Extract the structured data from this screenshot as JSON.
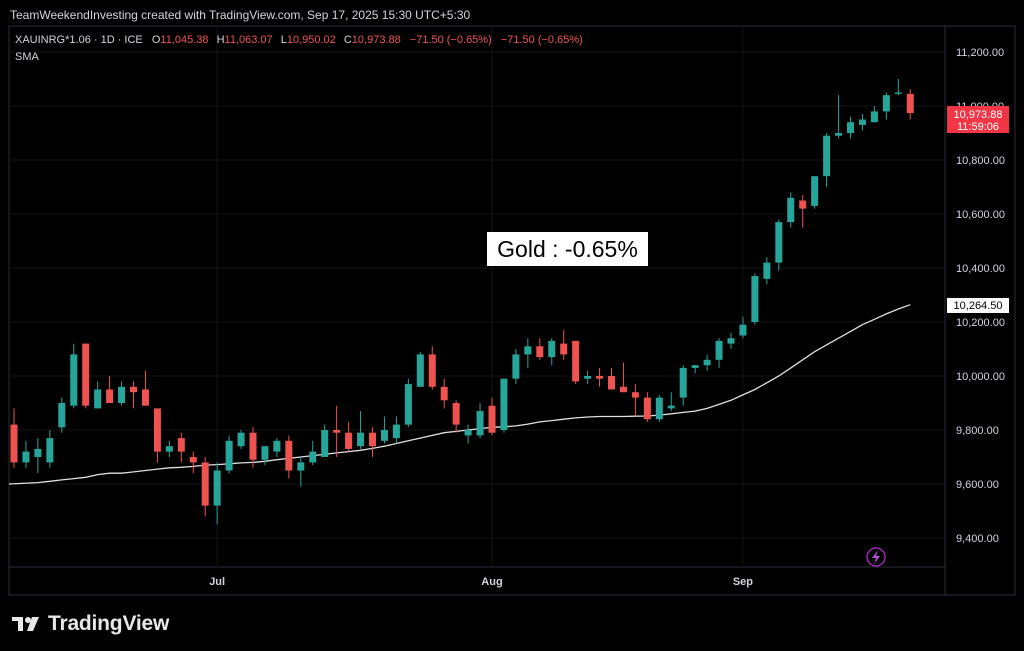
{
  "header": {
    "credit": "TeamWeekendInvesting created with TradingView.com, Sep 17, 2025 15:30 UTC+5:30",
    "symbol": "XAUINRG*1.06 · 1D · ICE",
    "o_label": "O",
    "o_value": "11,045.38",
    "h_label": "H",
    "h_value": "11,063.07",
    "l_label": "L",
    "l_value": "10,950.02",
    "c_label": "C",
    "c_value": "10,973.88",
    "change": "−71.50 (−0.65%)",
    "change2": "−71.50 (−0.65%)",
    "indicator": "SMA"
  },
  "annotation": "Gold : -0.65%",
  "price_badge": {
    "price": "10,973.88",
    "countdown": "11:59:06"
  },
  "sma_badge": "10,264.50",
  "brand": {
    "name": "TradingView",
    "icon": "tradingview-logo-icon"
  },
  "corner_icon": "lightning-icon",
  "colors": {
    "up": "#26a69a",
    "down": "#ef5350",
    "sma": "#e0e0e0",
    "background": "#000000",
    "badge_sma": "#ffffff"
  },
  "chart_data": {
    "type": "candlestick",
    "ylim": [
      9300,
      11300
    ],
    "y_ticks": [
      "9,400.00",
      "9,600.00",
      "9,800.00",
      "10,000.00",
      "10,200.00",
      "10,400.00",
      "10,600.00",
      "10,800.00",
      "11,000.00",
      "11,200.00"
    ],
    "y_tick_values": [
      9400,
      9600,
      9800,
      10000,
      10200,
      10400,
      10600,
      10800,
      11000,
      11200
    ],
    "x_labels": [
      {
        "label": "Jul",
        "index": 17
      },
      {
        "label": "Aug",
        "index": 40
      },
      {
        "label": "Sep",
        "index": 61
      }
    ],
    "candles": [
      {
        "o": 9820,
        "h": 9880,
        "l": 9660,
        "c": 9680
      },
      {
        "o": 9680,
        "h": 9760,
        "l": 9660,
        "c": 9720
      },
      {
        "o": 9700,
        "h": 9770,
        "l": 9640,
        "c": 9730
      },
      {
        "o": 9680,
        "h": 9800,
        "l": 9660,
        "c": 9770
      },
      {
        "o": 9810,
        "h": 9920,
        "l": 9790,
        "c": 9900
      },
      {
        "o": 9890,
        "h": 10120,
        "l": 9880,
        "c": 10080
      },
      {
        "o": 10120,
        "h": 10120,
        "l": 9880,
        "c": 9890
      },
      {
        "o": 9880,
        "h": 9980,
        "l": 9880,
        "c": 9950
      },
      {
        "o": 9950,
        "h": 10000,
        "l": 9900,
        "c": 9900
      },
      {
        "o": 9900,
        "h": 9980,
        "l": 9890,
        "c": 9960
      },
      {
        "o": 9960,
        "h": 9980,
        "l": 9880,
        "c": 9940
      },
      {
        "o": 9950,
        "h": 10020,
        "l": 9900,
        "c": 9890
      },
      {
        "o": 9880,
        "h": 9880,
        "l": 9680,
        "c": 9720
      },
      {
        "o": 9720,
        "h": 9760,
        "l": 9700,
        "c": 9740
      },
      {
        "o": 9770,
        "h": 9790,
        "l": 9680,
        "c": 9720
      },
      {
        "o": 9700,
        "h": 9720,
        "l": 9640,
        "c": 9680
      },
      {
        "o": 9680,
        "h": 9700,
        "l": 9480,
        "c": 9520
      },
      {
        "o": 9520,
        "h": 9680,
        "l": 9450,
        "c": 9650
      },
      {
        "o": 9650,
        "h": 9780,
        "l": 9640,
        "c": 9760
      },
      {
        "o": 9740,
        "h": 9800,
        "l": 9730,
        "c": 9790
      },
      {
        "o": 9790,
        "h": 9810,
        "l": 9660,
        "c": 9690
      },
      {
        "o": 9690,
        "h": 9740,
        "l": 9670,
        "c": 9740
      },
      {
        "o": 9720,
        "h": 9770,
        "l": 9700,
        "c": 9760
      },
      {
        "o": 9760,
        "h": 9780,
        "l": 9620,
        "c": 9650
      },
      {
        "o": 9650,
        "h": 9700,
        "l": 9590,
        "c": 9680
      },
      {
        "o": 9680,
        "h": 9760,
        "l": 9670,
        "c": 9720
      },
      {
        "o": 9700,
        "h": 9820,
        "l": 9700,
        "c": 9800
      },
      {
        "o": 9800,
        "h": 9890,
        "l": 9700,
        "c": 9790
      },
      {
        "o": 9790,
        "h": 9830,
        "l": 9720,
        "c": 9730
      },
      {
        "o": 9740,
        "h": 9870,
        "l": 9730,
        "c": 9790
      },
      {
        "o": 9790,
        "h": 9810,
        "l": 9700,
        "c": 9740
      },
      {
        "o": 9760,
        "h": 9850,
        "l": 9750,
        "c": 9800
      },
      {
        "o": 9770,
        "h": 9850,
        "l": 9750,
        "c": 9820
      },
      {
        "o": 9820,
        "h": 9990,
        "l": 9810,
        "c": 9970
      },
      {
        "o": 9960,
        "h": 10090,
        "l": 9960,
        "c": 10080
      },
      {
        "o": 10080,
        "h": 10110,
        "l": 9950,
        "c": 9960
      },
      {
        "o": 9960,
        "h": 9990,
        "l": 9880,
        "c": 9910
      },
      {
        "o": 9900,
        "h": 9910,
        "l": 9790,
        "c": 9820
      },
      {
        "o": 9780,
        "h": 9820,
        "l": 9750,
        "c": 9800
      },
      {
        "o": 9780,
        "h": 9900,
        "l": 9770,
        "c": 9870
      },
      {
        "o": 9890,
        "h": 9920,
        "l": 9780,
        "c": 9790
      },
      {
        "o": 9800,
        "h": 9990,
        "l": 9790,
        "c": 9990
      },
      {
        "o": 9990,
        "h": 10100,
        "l": 9970,
        "c": 10080
      },
      {
        "o": 10080,
        "h": 10140,
        "l": 10030,
        "c": 10110
      },
      {
        "o": 10110,
        "h": 10140,
        "l": 10060,
        "c": 10070
      },
      {
        "o": 10070,
        "h": 10140,
        "l": 10040,
        "c": 10130
      },
      {
        "o": 10120,
        "h": 10170,
        "l": 10060,
        "c": 10080
      },
      {
        "o": 10130,
        "h": 10130,
        "l": 9970,
        "c": 9980
      },
      {
        "o": 9990,
        "h": 10020,
        "l": 9970,
        "c": 10000
      },
      {
        "o": 10000,
        "h": 10030,
        "l": 9960,
        "c": 9990
      },
      {
        "o": 10000,
        "h": 10030,
        "l": 9950,
        "c": 9950
      },
      {
        "o": 9960,
        "h": 10050,
        "l": 9940,
        "c": 9940
      },
      {
        "o": 9940,
        "h": 9970,
        "l": 9850,
        "c": 9920
      },
      {
        "o": 9920,
        "h": 9940,
        "l": 9830,
        "c": 9840
      },
      {
        "o": 9840,
        "h": 9930,
        "l": 9830,
        "c": 9920
      },
      {
        "o": 9880,
        "h": 9940,
        "l": 9870,
        "c": 9890
      },
      {
        "o": 9920,
        "h": 10040,
        "l": 9890,
        "c": 10030
      },
      {
        "o": 10030,
        "h": 10040,
        "l": 10010,
        "c": 10040
      },
      {
        "o": 10040,
        "h": 10080,
        "l": 10020,
        "c": 10060
      },
      {
        "o": 10060,
        "h": 10140,
        "l": 10030,
        "c": 10130
      },
      {
        "o": 10120,
        "h": 10160,
        "l": 10100,
        "c": 10140
      },
      {
        "o": 10150,
        "h": 10220,
        "l": 10140,
        "c": 10190
      },
      {
        "o": 10200,
        "h": 10380,
        "l": 10190,
        "c": 10370
      },
      {
        "o": 10360,
        "h": 10440,
        "l": 10340,
        "c": 10420
      },
      {
        "o": 10420,
        "h": 10580,
        "l": 10390,
        "c": 10570
      },
      {
        "o": 10570,
        "h": 10680,
        "l": 10550,
        "c": 10660
      },
      {
        "o": 10650,
        "h": 10670,
        "l": 10550,
        "c": 10620
      },
      {
        "o": 10630,
        "h": 10740,
        "l": 10620,
        "c": 10740
      },
      {
        "o": 10740,
        "h": 10900,
        "l": 10700,
        "c": 10890
      },
      {
        "o": 10890,
        "h": 11040,
        "l": 10880,
        "c": 10900
      },
      {
        "o": 10900,
        "h": 10960,
        "l": 10880,
        "c": 10940
      },
      {
        "o": 10930,
        "h": 10970,
        "l": 10910,
        "c": 10950
      },
      {
        "o": 10940,
        "h": 11000,
        "l": 10940,
        "c": 10980
      },
      {
        "o": 10980,
        "h": 11050,
        "l": 10950,
        "c": 11040
      },
      {
        "o": 11045,
        "h": 11100,
        "l": 11040,
        "c": 11050
      },
      {
        "o": 11045,
        "h": 11063,
        "l": 10950,
        "c": 10974
      }
    ],
    "sma": [
      9600,
      9605,
      9610,
      9615,
      9620,
      9625,
      9635,
      9640,
      9640,
      9645,
      9650,
      9655,
      9660,
      9662,
      9665,
      9670,
      9672,
      9675,
      9678,
      9680,
      9684,
      9690,
      9695,
      9700,
      9705,
      9710,
      9715,
      9720,
      9725,
      9732,
      9740,
      9750,
      9760,
      9770,
      9780,
      9790,
      9795,
      9800,
      9805,
      9810,
      9812,
      9815,
      9822,
      9830,
      9835,
      9840,
      9845,
      9848,
      9850,
      9850,
      9850,
      9851,
      9852,
      9855,
      9860,
      9865,
      9870,
      9880,
      9895,
      9910,
      9930,
      9950,
      9975,
      10000,
      10030,
      10060,
      10090,
      10115,
      10140,
      10165,
      10190,
      10210,
      10230,
      10248,
      10264
    ]
  }
}
